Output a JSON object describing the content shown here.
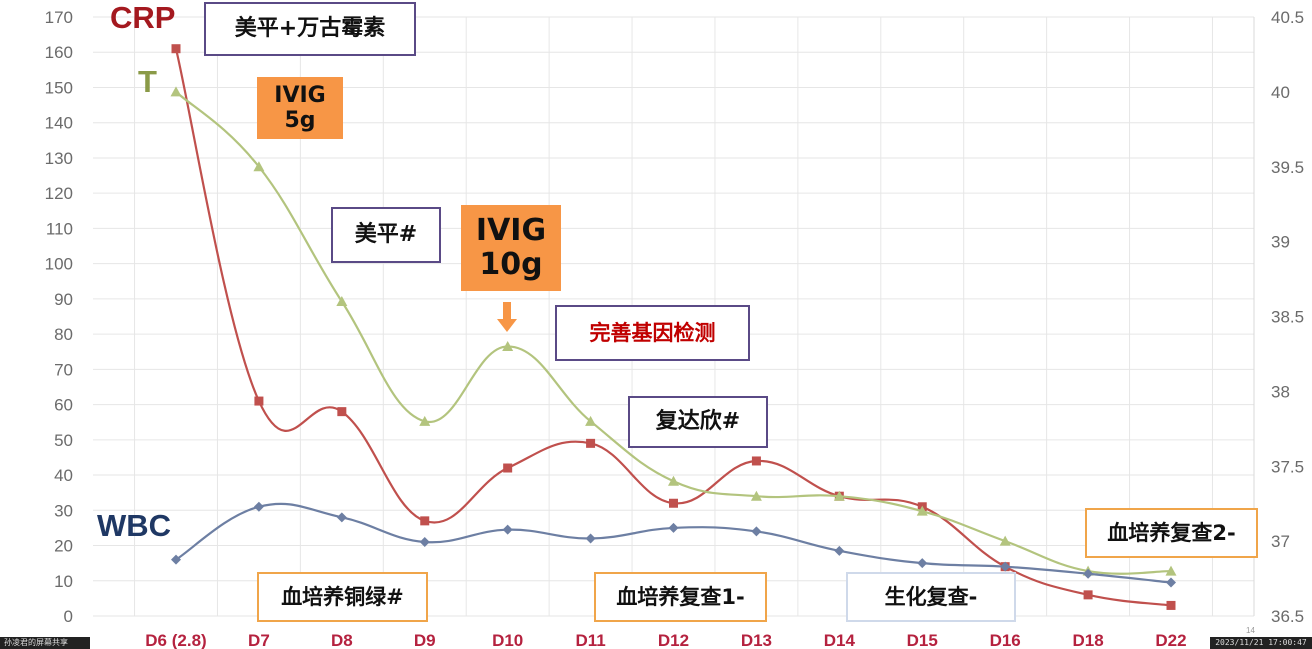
{
  "chart_data": {
    "type": "line",
    "categories": [
      "D6 (2.8)",
      "D7",
      "D8",
      "D9",
      "D10",
      "D11",
      "D12",
      "D13",
      "D14",
      "D15",
      "D16",
      "D18",
      "D22"
    ],
    "left_axis": {
      "ylim": [
        0,
        170
      ],
      "ticks": [
        0,
        10,
        20,
        30,
        40,
        50,
        60,
        70,
        80,
        90,
        100,
        110,
        120,
        130,
        140,
        150,
        160,
        170
      ]
    },
    "right_axis": {
      "ylim": [
        36.5,
        40.5
      ],
      "ticks": [
        "36.5",
        "37",
        "37.5",
        "38",
        "38.5",
        "39",
        "39.5",
        "40",
        "40.5"
      ]
    },
    "grid": true,
    "series": [
      {
        "name": "CRP",
        "axis": "left",
        "color": "#c0504d",
        "marker": "square",
        "values": [
          161,
          61,
          58,
          27,
          42,
          49,
          32,
          44,
          34,
          31,
          14,
          6,
          3
        ]
      },
      {
        "name": "T",
        "axis": "right",
        "color": "#b3c47e",
        "marker": "triangle",
        "values": [
          40.0,
          39.5,
          38.6,
          37.8,
          38.3,
          37.8,
          37.4,
          37.3,
          37.3,
          37.2,
          37.0,
          36.8,
          36.8
        ]
      },
      {
        "name": "WBC",
        "axis": "left",
        "color": "#6d7fa3",
        "marker": "diamond",
        "values": [
          16,
          31,
          28,
          21,
          24.5,
          22,
          25,
          24,
          18.5,
          15,
          14,
          12,
          9.5
        ]
      }
    ]
  },
  "series_labels": {
    "crp": "CRP",
    "t": "T",
    "wbc": "WBC"
  },
  "colors": {
    "crp": "#c0504d",
    "crp_label": "#a4191f",
    "t": "#b3c47e",
    "t_label": "#8a9a47",
    "wbc": "#6d7fa3",
    "wbc_label": "#1f3864",
    "x_labels": "#b5223f",
    "arrow": "#f79646"
  },
  "annotations": {
    "meiping_vanco": "美平+万古霉素",
    "ivig_5g_line1": "IVIG",
    "ivig_5g_line2": "5g",
    "meiping_hash": "美平#",
    "ivig_10g_line1": "IVIG",
    "ivig_10g_line2": "10g",
    "gene_test": "完善基因检测",
    "fudaxin": "复达欣#",
    "blood_culture_pseudo": "血培养铜绿#",
    "blood_culture_recheck1": "血培养复查1-",
    "biochem_recheck": "生化复查-",
    "blood_culture_recheck2": "血培养复查2-"
  },
  "overlay": {
    "page_number": "14",
    "timestamp": "2023/11/21 17:00:47",
    "share_text": "孙凌君的屏幕共享"
  }
}
